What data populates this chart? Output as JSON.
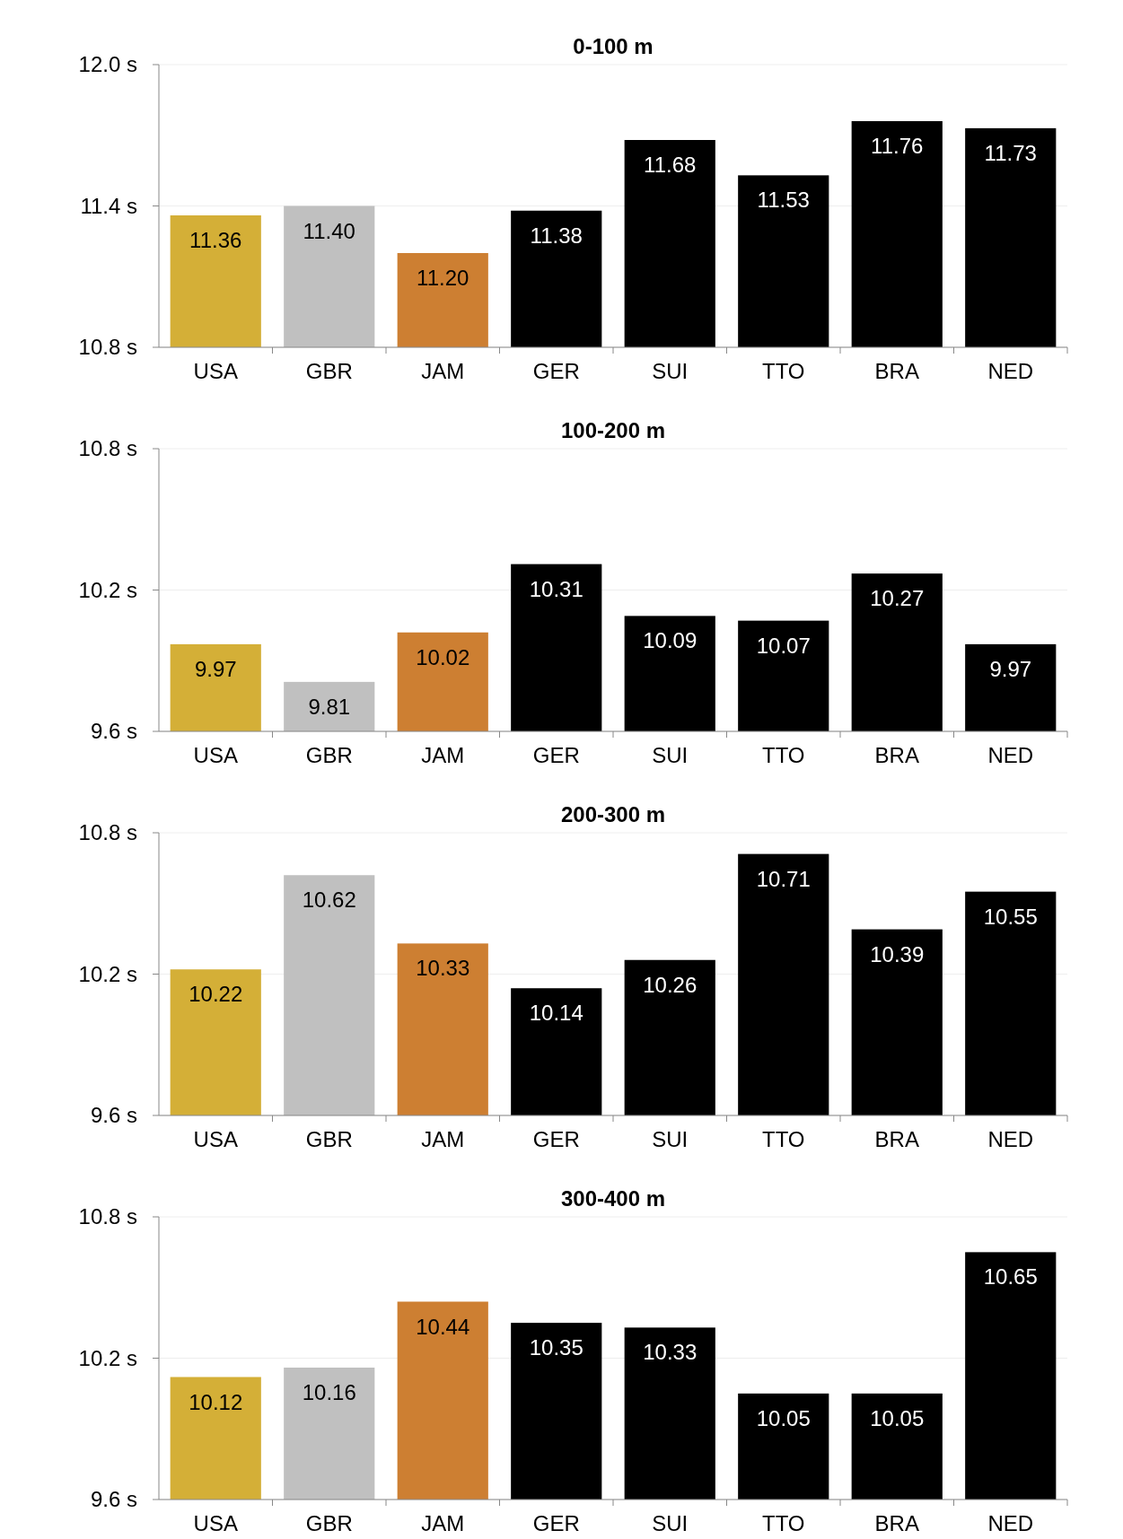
{
  "chart_data": [
    {
      "type": "bar",
      "title": "0-100 m",
      "categories": [
        "USA",
        "GBR",
        "JAM",
        "GER",
        "SUI",
        "TTO",
        "BRA",
        "NED"
      ],
      "values": [
        11.36,
        11.4,
        11.2,
        11.38,
        11.68,
        11.53,
        11.76,
        11.73
      ],
      "value_labels": [
        "11.36",
        "11.40",
        "11.20",
        "11.38",
        "11.68",
        "11.53",
        "11.76",
        "11.73"
      ],
      "colors": [
        "#d4af37",
        "#c0c0c0",
        "#cd7f32",
        "#000000",
        "#000000",
        "#000000",
        "#000000",
        "#000000"
      ],
      "ylim": [
        10.8,
        12.0
      ],
      "yticks": [
        {
          "value": 10.8,
          "label": "10.8 s"
        },
        {
          "value": 11.4,
          "label": "11.4 s"
        },
        {
          "value": 12.0,
          "label": "12.0 s"
        }
      ],
      "grid": "y"
    },
    {
      "type": "bar",
      "title": "100-200 m",
      "categories": [
        "USA",
        "GBR",
        "JAM",
        "GER",
        "SUI",
        "TTO",
        "BRA",
        "NED"
      ],
      "values": [
        9.97,
        9.81,
        10.02,
        10.31,
        10.09,
        10.07,
        10.27,
        9.97
      ],
      "value_labels": [
        "9.97",
        "9.81",
        "10.02",
        "10.31",
        "10.09",
        "10.07",
        "10.27",
        "9.97"
      ],
      "colors": [
        "#d4af37",
        "#c0c0c0",
        "#cd7f32",
        "#000000",
        "#000000",
        "#000000",
        "#000000",
        "#000000"
      ],
      "ylim": [
        9.6,
        10.8
      ],
      "yticks": [
        {
          "value": 9.6,
          "label": "9.6 s"
        },
        {
          "value": 10.2,
          "label": "10.2 s"
        },
        {
          "value": 10.8,
          "label": "10.8 s"
        }
      ],
      "grid": "y"
    },
    {
      "type": "bar",
      "title": "200-300 m",
      "categories": [
        "USA",
        "GBR",
        "JAM",
        "GER",
        "SUI",
        "TTO",
        "BRA",
        "NED"
      ],
      "values": [
        10.22,
        10.62,
        10.33,
        10.14,
        10.26,
        10.71,
        10.39,
        10.55
      ],
      "value_labels": [
        "10.22",
        "10.62",
        "10.33",
        "10.14",
        "10.26",
        "10.71",
        "10.39",
        "10.55"
      ],
      "colors": [
        "#d4af37",
        "#c0c0c0",
        "#cd7f32",
        "#000000",
        "#000000",
        "#000000",
        "#000000",
        "#000000"
      ],
      "ylim": [
        9.6,
        10.8
      ],
      "yticks": [
        {
          "value": 9.6,
          "label": "9.6 s"
        },
        {
          "value": 10.2,
          "label": "10.2 s"
        },
        {
          "value": 10.8,
          "label": "10.8 s"
        }
      ],
      "grid": "y"
    },
    {
      "type": "bar",
      "title": "300-400 m",
      "categories": [
        "USA",
        "GBR",
        "JAM",
        "GER",
        "SUI",
        "TTO",
        "BRA",
        "NED"
      ],
      "values": [
        10.12,
        10.16,
        10.44,
        10.35,
        10.33,
        10.05,
        10.05,
        10.65
      ],
      "value_labels": [
        "10.12",
        "10.16",
        "10.44",
        "10.35",
        "10.33",
        "10.05",
        "10.05",
        "10.65"
      ],
      "colors": [
        "#d4af37",
        "#c0c0c0",
        "#cd7f32",
        "#000000",
        "#000000",
        "#000000",
        "#000000",
        "#000000"
      ],
      "ylim": [
        9.6,
        10.8
      ],
      "yticks": [
        {
          "value": 9.6,
          "label": "9.6 s"
        },
        {
          "value": 10.2,
          "label": "10.2 s"
        },
        {
          "value": 10.8,
          "label": "10.8 s"
        }
      ],
      "grid": "y"
    }
  ]
}
